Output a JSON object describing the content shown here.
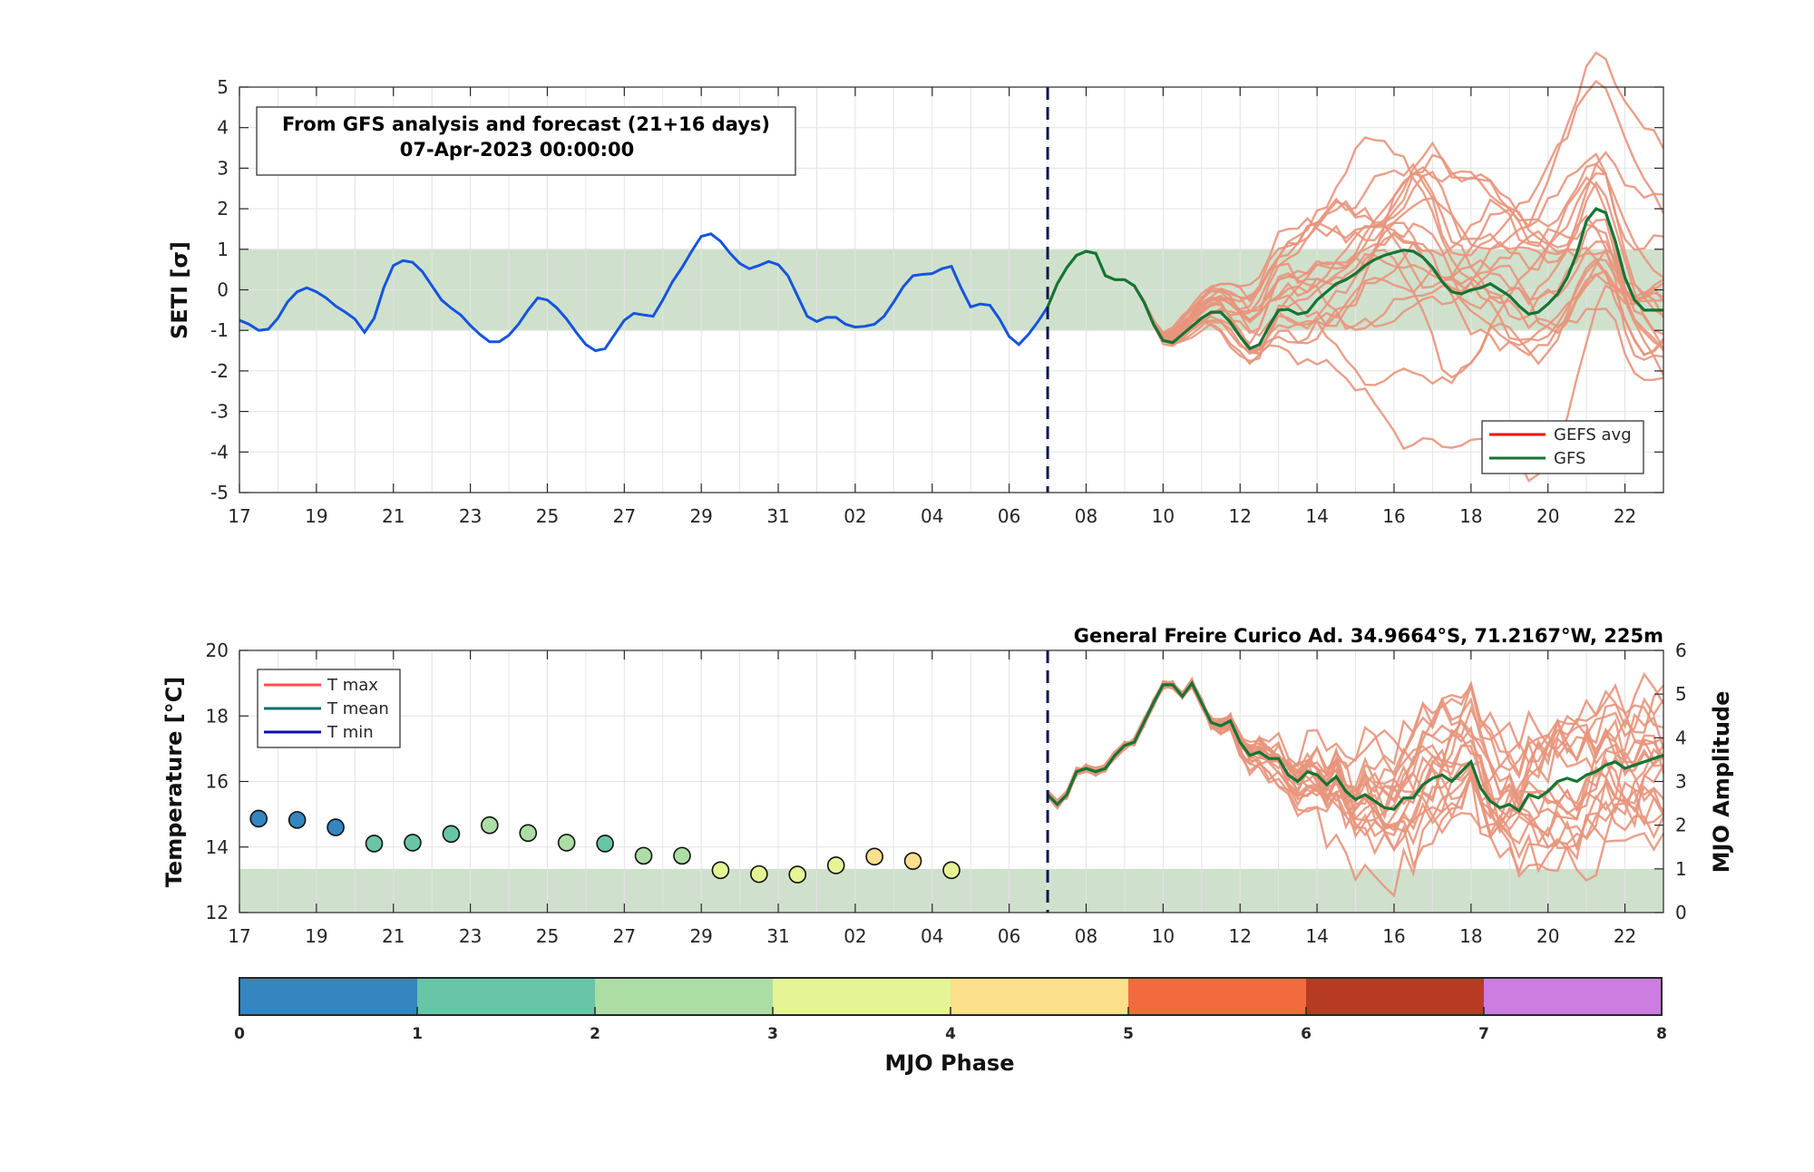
{
  "chart_data": [
    {
      "type": "line",
      "ylabel": "SETI [σ]",
      "ylim": [
        -5,
        5
      ],
      "yticks": [
        -5,
        -4,
        -3,
        -2,
        -1,
        0,
        1,
        2,
        3,
        4,
        5
      ],
      "xlim": [
        "2023-03-17",
        "2023-04-23"
      ],
      "xtick_labels": [
        "17",
        "19",
        "21",
        "23",
        "25",
        "27",
        "29",
        "31",
        "02",
        "04",
        "06",
        "08",
        "10",
        "12",
        "14",
        "16",
        "18",
        "20",
        "22"
      ],
      "grid": true,
      "normal_band": [
        -1,
        1
      ],
      "forecast_start": "2023-04-07",
      "info_box": [
        "From GFS analysis and forecast (21+16 days)",
        "07-Apr-2023 00:00:00"
      ],
      "legend": {
        "placement": "bottom-right",
        "entries": [
          "GEFS avg",
          "GFS"
        ]
      },
      "analysis_series": {
        "day_offsets_from_2023-03-17": [
          0,
          0.25,
          0.5,
          0.75,
          1,
          1.25,
          1.5,
          1.75,
          2,
          2.25,
          2.5,
          2.75,
          3,
          3.25,
          3.5,
          3.75,
          4,
          4.25,
          4.5,
          4.75,
          5,
          5.25,
          5.5,
          5.75,
          6,
          6.25,
          6.5,
          6.75,
          7,
          7.25,
          7.5,
          7.75,
          8,
          8.25,
          8.5,
          8.75,
          9,
          9.25,
          9.5,
          9.75,
          10,
          10.25,
          10.5,
          10.75,
          11,
          11.25,
          11.5,
          11.75,
          12,
          12.25,
          12.5,
          12.75,
          13,
          13.25,
          13.5,
          13.75,
          14,
          14.25,
          14.5,
          14.75,
          15,
          15.25,
          15.5,
          15.75,
          16,
          16.25,
          16.5,
          16.75,
          17,
          17.25,
          17.5,
          17.75,
          18,
          18.25,
          18.5,
          18.75,
          19,
          19.25,
          19.5,
          19.75,
          20,
          20.25,
          20.5,
          20.75,
          21
        ],
        "values": [
          -0.75,
          -0.85,
          -1.0,
          -0.97,
          -0.7,
          -0.3,
          -0.05,
          0.05,
          -0.05,
          -0.2,
          -0.4,
          -0.55,
          -0.72,
          -1.05,
          -0.7,
          0.05,
          0.6,
          0.72,
          0.68,
          0.45,
          0.1,
          -0.25,
          -0.45,
          -0.62,
          -0.88,
          -1.1,
          -1.28,
          -1.28,
          -1.12,
          -0.85,
          -0.5,
          -0.2,
          -0.25,
          -0.45,
          -0.72,
          -1.05,
          -1.35,
          -1.5,
          -1.45,
          -1.1,
          -0.75,
          -0.58,
          -0.62,
          -0.65,
          -0.25,
          0.2,
          0.55,
          0.95,
          1.32,
          1.38,
          1.2,
          0.9,
          0.65,
          0.52,
          0.6,
          0.7,
          0.62,
          0.35,
          -0.15,
          -0.65,
          -0.78,
          -0.68,
          -0.68,
          -0.85,
          -0.92,
          -0.9,
          -0.85,
          -0.65,
          -0.3,
          0.08,
          0.35,
          0.38,
          0.4,
          0.52,
          0.58,
          0.05,
          -0.42,
          -0.35,
          -0.38,
          -0.72,
          -1.15,
          -1.35,
          -1.1,
          -0.78,
          -0.42
        ]
      },
      "gfs_series": {
        "day_offsets_from_2023-03-17": [
          21,
          21.25,
          21.5,
          21.75,
          22,
          22.25,
          22.5,
          22.75,
          23,
          23.25,
          23.5,
          23.75,
          24,
          24.25,
          24.5,
          24.75,
          25,
          25.25,
          25.5,
          25.75,
          26,
          26.25,
          26.5,
          26.75,
          27,
          27.25,
          27.5,
          27.75,
          28,
          28.25,
          28.5,
          28.75,
          29,
          29.25,
          29.5,
          29.75,
          30,
          30.25,
          30.5,
          30.75,
          31,
          31.25,
          31.5,
          31.75,
          32,
          32.25,
          32.5,
          32.75,
          33,
          33.25,
          33.5,
          33.75,
          34,
          34.25,
          34.5,
          34.75,
          35,
          35.25,
          35.5,
          35.75,
          36,
          36.25,
          36.5,
          36.75,
          37
        ],
        "values": [
          -0.42,
          0.15,
          0.55,
          0.85,
          0.95,
          0.9,
          0.35,
          0.25,
          0.25,
          0.1,
          -0.3,
          -0.85,
          -1.25,
          -1.3,
          -1.1,
          -0.9,
          -0.7,
          -0.55,
          -0.55,
          -0.8,
          -1.15,
          -1.45,
          -1.35,
          -0.9,
          -0.5,
          -0.48,
          -0.6,
          -0.55,
          -0.25,
          -0.05,
          0.15,
          0.25,
          0.4,
          0.6,
          0.75,
          0.85,
          0.92,
          0.98,
          0.95,
          0.8,
          0.55,
          0.2,
          -0.05,
          -0.1,
          0.0,
          0.05,
          0.15,
          0.0,
          -0.15,
          -0.4,
          -0.6,
          -0.55,
          -0.35,
          -0.1,
          0.3,
          0.9,
          1.7,
          2.0,
          1.9,
          1.2,
          0.3,
          -0.25,
          -0.5,
          -0.5,
          -0.5
        ]
      },
      "ensemble_member_count": 21
    },
    {
      "type": "line",
      "title": "General Freire Curico Ad. 34.9664°S, 71.2167°W, 225m",
      "ylabel": "Temperature [°C]",
      "ylim": [
        12,
        20
      ],
      "yticks": [
        12,
        14,
        16,
        18,
        20
      ],
      "y2label": "MJO Amplitude",
      "y2lim": [
        0,
        6
      ],
      "y2ticks": [
        0,
        1,
        2,
        3,
        4,
        5,
        6
      ],
      "xlim": [
        "2023-03-17",
        "2023-04-23"
      ],
      "xtick_labels": [
        "17",
        "19",
        "21",
        "23",
        "25",
        "27",
        "29",
        "31",
        "02",
        "04",
        "06",
        "08",
        "10",
        "12",
        "14",
        "16",
        "18",
        "20",
        "22"
      ],
      "grid": true,
      "mjo_amplitude_band": [
        0,
        1
      ],
      "forecast_start": "2023-04-07",
      "legend": {
        "placement": "top-left",
        "entries": [
          "T max",
          "T mean",
          "T min"
        ]
      },
      "mjo_points": {
        "day_offsets_from_2023-03-17": [
          0.5,
          1.5,
          2.5,
          3.5,
          4.5,
          5.5,
          6.5,
          7.5,
          8.5,
          9.5,
          10.5,
          11.5,
          12.5,
          13.5,
          14.5,
          15.5,
          16.5,
          17.5,
          18.5
        ],
        "amplitude": [
          2.15,
          2.12,
          1.95,
          1.58,
          1.6,
          1.8,
          2.0,
          1.82,
          1.6,
          1.58,
          1.3,
          1.3,
          0.97,
          0.88,
          0.87,
          1.08,
          1.28,
          1.18,
          0.97
        ],
        "phase": [
          0.8,
          0.8,
          0.8,
          1.3,
          1.4,
          1.6,
          2.1,
          2.2,
          2.3,
          1.9,
          2.4,
          2.6,
          3.1,
          3.4,
          3.5,
          3.9,
          4.2,
          4.3,
          3.3
        ]
      },
      "t_mean_gfs": {
        "day_offsets_from_2023-03-17": [
          21,
          21.25,
          21.5,
          21.75,
          22,
          22.25,
          22.5,
          22.75,
          23,
          23.25,
          23.5,
          23.75,
          24,
          24.25,
          24.5,
          24.75,
          25,
          25.25,
          25.5,
          25.75,
          26,
          26.25,
          26.5,
          26.75,
          27,
          27.25,
          27.5,
          27.75,
          28,
          28.25,
          28.5,
          28.75,
          29,
          29.25,
          29.5,
          29.75,
          30,
          30.25,
          30.5,
          30.75,
          31,
          31.25,
          31.5,
          31.75,
          32,
          32.25,
          32.5,
          32.75,
          33,
          33.25,
          33.5,
          33.75,
          34,
          34.25,
          34.5,
          34.75,
          35,
          35.25,
          35.5,
          35.75,
          36,
          36.25,
          36.5,
          36.75,
          37
        ],
        "values": [
          15.6,
          15.3,
          15.6,
          16.3,
          16.4,
          16.3,
          16.4,
          16.8,
          17.1,
          17.2,
          17.8,
          18.4,
          18.95,
          18.95,
          18.6,
          19.0,
          18.4,
          17.8,
          17.7,
          17.85,
          17.2,
          16.8,
          16.9,
          16.7,
          16.7,
          16.2,
          16.0,
          16.3,
          16.2,
          15.9,
          16.15,
          15.7,
          15.45,
          15.6,
          15.4,
          15.2,
          15.15,
          15.5,
          15.5,
          15.9,
          16.1,
          16.2,
          16.0,
          16.3,
          16.6,
          15.8,
          15.4,
          15.2,
          15.3,
          15.1,
          15.6,
          15.5,
          15.7,
          16.0,
          16.1,
          16.0,
          16.2,
          16.3,
          16.5,
          16.6,
          16.4,
          16.5,
          16.6,
          16.7,
          16.8
        ]
      }
    },
    {
      "type": "colorbar",
      "label": "MJO Phase",
      "ticks": [
        "0",
        "1",
        "2",
        "3",
        "4",
        "5",
        "6",
        "7",
        "8"
      ],
      "colors": [
        "#3386c0",
        "#68c5a7",
        "#abdda4",
        "#e5f595",
        "#fde08b",
        "#f26b3f",
        "#b73b23",
        "#cc7ddf"
      ]
    }
  ],
  "colors": {
    "analysis": "#1554e0",
    "gfs": "#137534",
    "gefs_avg": "#ff0000",
    "ensemble": "#e8957c",
    "band": "#cfe1cc",
    "forecast_line": "#0d1450",
    "t_max": "#ff4d4d",
    "t_mean": "#0f6e64",
    "t_min": "#0d0da8"
  }
}
